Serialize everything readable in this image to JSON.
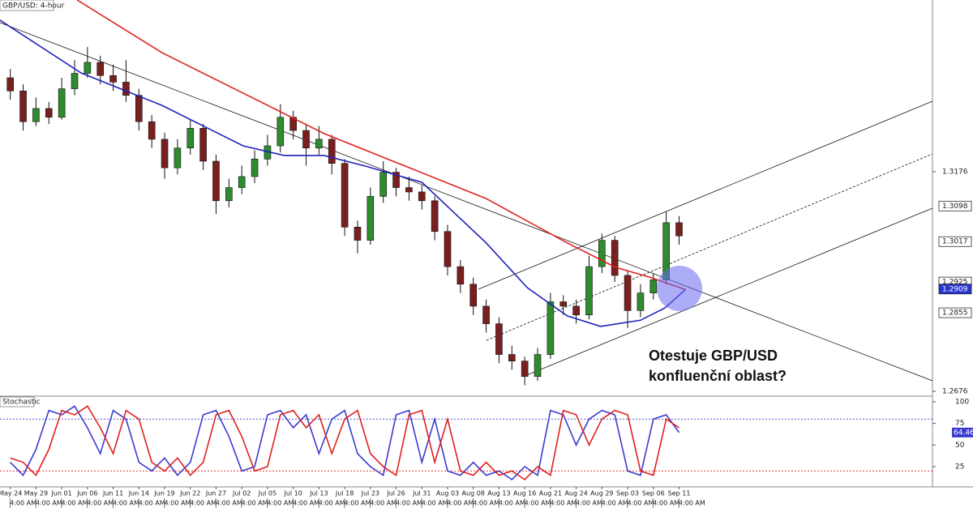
{
  "chart_data": [
    {
      "type": "candlestick",
      "title": "GBP/USD: 4-hour",
      "xlim": [
        -0.8,
        71.7
      ],
      "ylim": [
        1.2667,
        1.3567
      ],
      "yticks": [
        1.2676,
        1.3176
      ],
      "up_color": "#2e8b2e",
      "down_color": "#7a1f1f",
      "open": [
        1.339,
        1.336,
        1.329,
        1.332,
        1.33,
        1.3365,
        1.34,
        1.3425,
        1.3395,
        1.338,
        1.335,
        1.329,
        1.325,
        1.3185,
        1.323,
        1.3275,
        1.32,
        1.311,
        1.314,
        1.3165,
        1.3205,
        1.3235,
        1.33,
        1.327,
        1.323,
        1.325,
        1.3195,
        1.305,
        1.302,
        1.312,
        1.3175,
        1.314,
        1.313,
        1.311,
        1.304,
        1.296,
        1.292,
        1.287,
        1.283,
        1.276,
        1.2745,
        1.271,
        1.276,
        1.288,
        1.287,
        1.285,
        1.296,
        1.302,
        1.294,
        1.286,
        1.29,
        1.293,
        1.306
      ],
      "high": [
        1.341,
        1.3375,
        1.3345,
        1.3335,
        1.339,
        1.343,
        1.346,
        1.344,
        1.342,
        1.343,
        1.3365,
        1.3305,
        1.3265,
        1.325,
        1.3295,
        1.3285,
        1.3215,
        1.316,
        1.319,
        1.3225,
        1.326,
        1.333,
        1.3315,
        1.3285,
        1.328,
        1.326,
        1.3205,
        1.3065,
        1.314,
        1.32,
        1.3185,
        1.3165,
        1.3145,
        1.312,
        1.3055,
        1.2975,
        1.2935,
        1.2885,
        1.2845,
        1.278,
        1.2755,
        1.2775,
        1.29,
        1.2895,
        1.2885,
        1.2985,
        1.3035,
        1.303,
        1.295,
        1.292,
        1.2945,
        1.3085,
        1.3075
      ],
      "low": [
        1.334,
        1.327,
        1.328,
        1.3285,
        1.3295,
        1.335,
        1.339,
        1.3375,
        1.336,
        1.3335,
        1.327,
        1.323,
        1.316,
        1.317,
        1.3215,
        1.318,
        1.308,
        1.3095,
        1.3125,
        1.315,
        1.319,
        1.322,
        1.325,
        1.319,
        1.3215,
        1.317,
        1.303,
        1.299,
        1.301,
        1.3105,
        1.312,
        1.311,
        1.309,
        1.302,
        1.294,
        1.29,
        1.285,
        1.281,
        1.274,
        1.2725,
        1.269,
        1.27,
        1.275,
        1.285,
        1.283,
        1.284,
        1.2945,
        1.2925,
        1.282,
        1.2845,
        1.2885,
        1.292,
        1.301
      ],
      "close": [
        1.336,
        1.329,
        1.332,
        1.33,
        1.3365,
        1.34,
        1.3425,
        1.3395,
        1.338,
        1.335,
        1.329,
        1.325,
        1.3185,
        1.323,
        1.3275,
        1.32,
        1.311,
        1.314,
        1.3165,
        1.3205,
        1.3235,
        1.33,
        1.327,
        1.323,
        1.325,
        1.3195,
        1.305,
        1.302,
        1.312,
        1.3175,
        1.314,
        1.313,
        1.311,
        1.304,
        1.296,
        1.292,
        1.287,
        1.283,
        1.276,
        1.2745,
        1.271,
        1.276,
        1.288,
        1.287,
        1.285,
        1.296,
        1.302,
        1.294,
        1.286,
        1.29,
        1.293,
        1.306,
        1.303
      ],
      "series": [
        {
          "color": "#e0201c",
          "x": [
            5.2,
            11.8,
            18.1,
            24.4,
            30.7,
            37,
            43.3,
            47.1,
            49.7,
            52.5
          ],
          "values": [
            1.3567,
            1.3447,
            1.3355,
            1.3263,
            1.3189,
            1.3115,
            1.3014,
            1.2958,
            1.2936,
            1.2908
          ]
        },
        {
          "color": "#1f22b8",
          "x": [
            -0.8,
            5.5,
            11.8,
            18.1,
            21.3,
            24.4,
            27.6,
            32,
            37,
            40.2,
            43.3,
            45.9,
            49,
            50.9,
            52.5
          ],
          "values": [
            1.3521,
            1.3401,
            1.3327,
            1.3235,
            1.3213,
            1.3213,
            1.3189,
            1.3152,
            1.3014,
            1.2912,
            1.2848,
            1.2824,
            1.2838,
            1.2866,
            1.2908
          ]
        }
      ],
      "badges": [
        {
          "value": 1.3098,
          "color": "#ffffff"
        },
        {
          "value": 1.3017,
          "color": "#ffffff"
        },
        {
          "value": 1.2925,
          "color": "#ffffff"
        },
        {
          "value": 1.2909,
          "color": "#2a36d0"
        },
        {
          "value": 1.2855,
          "color": "#ffffff"
        }
      ],
      "xticks": [
        {
          "value": 0,
          "label": "May 24"
        },
        {
          "value": 2,
          "label": "May 29"
        },
        {
          "value": 4,
          "label": "Jun 01"
        },
        {
          "value": 6,
          "label": "Jun 06"
        },
        {
          "value": 8,
          "label": "Jun 11"
        },
        {
          "value": 10,
          "label": "Jun 14"
        },
        {
          "value": 12,
          "label": "Jun 19"
        },
        {
          "value": 14,
          "label": "Jun 22"
        },
        {
          "value": 16,
          "label": "Jun 27"
        },
        {
          "value": 18,
          "label": "Jul 02"
        },
        {
          "value": 20,
          "label": "Jul 05"
        },
        {
          "value": 22,
          "label": "Jul 10"
        },
        {
          "value": 24,
          "label": "Jul 13"
        },
        {
          "value": 26,
          "label": "Jul 18"
        },
        {
          "value": 28,
          "label": "Jul 23"
        },
        {
          "value": 30,
          "label": "Jul 26"
        },
        {
          "value": 32,
          "label": "Jul 31"
        },
        {
          "value": 34,
          "label": "Aug 03"
        },
        {
          "value": 36,
          "label": "Aug 08"
        },
        {
          "value": 38,
          "label": "Aug 13"
        },
        {
          "value": 40,
          "label": "Aug 16"
        },
        {
          "value": 42,
          "label": "Aug 21"
        },
        {
          "value": 44,
          "label": "Aug 24"
        },
        {
          "value": 46,
          "label": "Aug 29"
        },
        {
          "value": 48,
          "label": "Sep 03"
        },
        {
          "value": 50,
          "label": "Sep 06"
        },
        {
          "value": 52,
          "label": "Sep 11"
        }
      ],
      "minor_xticks": [
        {
          "value": 1,
          "label": "4:00 AM"
        },
        {
          "value": 3,
          "label": "4:00 AM"
        },
        {
          "value": 5,
          "label": "4:00 AM"
        },
        {
          "value": 7,
          "label": "4:00 AM"
        },
        {
          "value": 9,
          "label": "4:00 AM"
        },
        {
          "value": 11,
          "label": "4:00 AM"
        },
        {
          "value": 13,
          "label": "4:00 AM"
        },
        {
          "value": 15,
          "label": "4:00 AM"
        },
        {
          "value": 17,
          "label": "4:00 AM"
        },
        {
          "value": 19,
          "label": "4:00 AM"
        },
        {
          "value": 21,
          "label": "4:00 AM"
        },
        {
          "value": 23,
          "label": "4:00 AM"
        },
        {
          "value": 25,
          "label": "4:00 AM"
        },
        {
          "value": 27,
          "label": "4:00 AM"
        },
        {
          "value": 29,
          "label": "4:00 AM"
        },
        {
          "value": 31,
          "label": "4:00 AM"
        },
        {
          "value": 33,
          "label": "4:00 AM"
        },
        {
          "value": 35,
          "label": "4:00 AM"
        },
        {
          "value": 37,
          "label": "4:00 AM"
        },
        {
          "value": 39,
          "label": "4:00 AM"
        },
        {
          "value": 41,
          "label": "4:00 AM"
        },
        {
          "value": 43,
          "label": "4:00 AM"
        },
        {
          "value": 45,
          "label": "4:00 AM"
        },
        {
          "value": 47,
          "label": "4:00 AM"
        },
        {
          "value": 49,
          "label": "4:00 AM"
        },
        {
          "value": 51,
          "label": "4:00 AM"
        },
        {
          "value": 53,
          "label": "4:00 AM"
        }
      ],
      "annotation": [
        "Otestuje GBP/USD",
        "konfluenční oblast?"
      ]
    },
    {
      "type": "line",
      "title": "Stochastic",
      "xlim": [
        -0.8,
        71.7
      ],
      "ylim": [
        2.5,
        105.6
      ],
      "yticks": [
        25,
        50,
        75,
        100
      ],
      "levels": [
        {
          "value": 80,
          "color": "#3b3bd0"
        },
        {
          "value": 20,
          "color": "#e02020"
        }
      ],
      "series": [
        {
          "color": "#3b3bd0",
          "values": [
            30,
            15,
            45,
            90,
            85,
            95,
            70,
            40,
            90,
            80,
            30,
            20,
            35,
            15,
            30,
            85,
            90,
            60,
            20,
            25,
            85,
            90,
            70,
            85,
            40,
            80,
            90,
            40,
            25,
            15,
            85,
            90,
            30,
            80,
            20,
            15,
            30,
            15,
            20,
            10,
            25,
            15,
            90,
            85,
            50,
            80,
            90,
            85,
            20,
            15,
            80,
            85,
            64.46
          ]
        },
        {
          "color": "#e02020",
          "values": [
            35,
            30,
            15,
            45,
            90,
            85,
            95,
            70,
            40,
            90,
            80,
            30,
            20,
            35,
            15,
            30,
            85,
            90,
            60,
            20,
            25,
            85,
            90,
            70,
            85,
            40,
            80,
            90,
            40,
            25,
            15,
            85,
            90,
            30,
            80,
            20,
            15,
            30,
            15,
            20,
            10,
            25,
            15,
            90,
            85,
            50,
            80,
            90,
            85,
            20,
            15,
            80,
            70
          ]
        }
      ]
    }
  ]
}
